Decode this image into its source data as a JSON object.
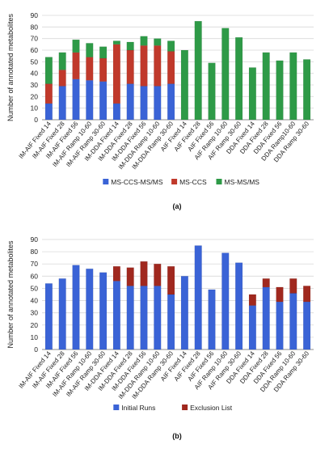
{
  "chart_data": [
    {
      "type": "bar",
      "stacked": true,
      "panel_label": "(a)",
      "ylabel": "Number of annotated metabolites",
      "ylim": [
        0,
        90
      ],
      "yticks": [
        0,
        10,
        20,
        30,
        40,
        50,
        60,
        70,
        80,
        90
      ],
      "grid": true,
      "legend_position": "bottom",
      "categories": [
        "IM-AIF Fixed 14",
        "IM-AIF Fixed 28",
        "IM-AIF Fixed 56",
        "IM-AIF Ramp 10-60",
        "IM-AIF Ramp 30-60",
        "IM-DDA Fixed 14",
        "IM-DDA Fixed 28",
        "IM-DDA Fixed 56",
        "IM-DDA Ramp 10-60",
        "IM-DDA Ramp 30-60",
        "AIF Fixed 14",
        "AIF Fixed 28",
        "AIF Fixed 56",
        "AIF Ramp 10-60",
        "AIF Ramp 30-60",
        "DDA Fixed 14",
        "DDA Fixed 28",
        "DDA Fixed 56",
        "DDA Ramp10-60",
        "DDA Ramp 30-60"
      ],
      "series": [
        {
          "name": "MS-CCS-MS/MS",
          "color": "#3a63d6",
          "values": [
            14,
            29,
            35,
            34,
            33,
            14,
            31,
            29,
            29,
            31,
            0,
            0,
            0,
            0,
            0,
            0,
            0,
            0,
            0,
            0
          ]
        },
        {
          "name": "MS-CCS",
          "color": "#c0392b",
          "values": [
            17,
            14,
            23,
            20,
            20,
            51,
            29,
            35,
            35,
            28,
            0,
            0,
            0,
            0,
            0,
            0,
            0,
            0,
            0,
            0
          ]
        },
        {
          "name": "MS-MS/MS",
          "color": "#2e9a47",
          "values": [
            23,
            15,
            11,
            12,
            10,
            3,
            7,
            8,
            6,
            9,
            60,
            85,
            49,
            79,
            71,
            45,
            58,
            51,
            58,
            52
          ]
        }
      ]
    },
    {
      "type": "bar",
      "stacked": true,
      "panel_label": "(b)",
      "ylabel": "Number of annotated metabolites",
      "ylim": [
        0,
        90
      ],
      "yticks": [
        0,
        10,
        20,
        30,
        40,
        50,
        60,
        70,
        80,
        90
      ],
      "grid": true,
      "legend_position": "bottom",
      "categories": [
        "IM-AIF Fixed 14",
        "IM-AIF Fixed 28",
        "IM-AIF Fixed 56",
        "IM-AIF Ramp 10-60",
        "IM-AIF Ramp 30-60",
        "IM-DDA Fixed 14",
        "IM-DDA Fixed 28",
        "IM-DDA Fixed 56",
        "IM-DDA Ramp 10-60",
        "IM-DDA Ramp 30-60",
        "AIF Fixed 14",
        "AIF Fixed 28",
        "AIF Fixed 56",
        "AIF Ramp 10-60",
        "AIF Ramp 30-60",
        "DDA Fixed 14",
        "DDA Fixed 28",
        "DDA Fixed 56",
        "DDA Ramp 10-60",
        "DDA Ramp 30-60"
      ],
      "series": [
        {
          "name": "Initial Runs",
          "color": "#3a63d6",
          "values": [
            54,
            58,
            69,
            66,
            63,
            56,
            52,
            52,
            52,
            45,
            60,
            85,
            49,
            79,
            71,
            36,
            51,
            39,
            46,
            39
          ]
        },
        {
          "name": "Exclusion List",
          "color": "#a0281e",
          "values": [
            0,
            0,
            0,
            0,
            0,
            12,
            15,
            20,
            18,
            23,
            0,
            0,
            0,
            0,
            0,
            9,
            7,
            12,
            12,
            13
          ]
        }
      ]
    }
  ]
}
